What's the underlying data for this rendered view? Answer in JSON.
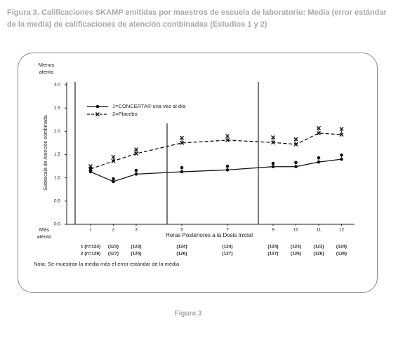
{
  "caption": "Figura 3. Calificaciones SKAMP emitidas por maestros de escuela de laboratorio: Media (error estándar de la media) de calificaciones de atención combinadas (Estudios 1 y 2)",
  "footer": "Figura 3",
  "chart_data": {
    "type": "line",
    "y_label": "Subescala de Atención combinada",
    "x_label": "Horas Posteriores a la Dosis Inicial",
    "top_note": "Menos atento",
    "bottom_note": "Más atento",
    "note": "Nota: Se muestran la media más el error estándar de la media",
    "x": [
      1,
      2,
      3,
      5,
      7,
      9,
      10,
      11,
      12
    ],
    "xlim": [
      0,
      13
    ],
    "xticks": [
      1,
      2,
      3,
      5,
      7,
      9,
      10,
      11,
      12
    ],
    "ylim": [
      0,
      3
    ],
    "yticks": [
      {
        "value": 0,
        "label": "0.0"
      },
      0.5,
      {
        "value": 1,
        "label": "1.0"
      },
      1.5,
      {
        "value": 2,
        "label": "2.0"
      },
      2.5,
      {
        "value": 3,
        "label": "3.0"
      }
    ],
    "series": [
      {
        "name": "1=CONCERTA® una vez al día",
        "color": "#111111",
        "style": "solid",
        "marker": "circle",
        "values": [
          1.13,
          0.92,
          1.08,
          1.13,
          1.17,
          1.24,
          1.24,
          1.34,
          1.4
        ],
        "errors": [
          0.07,
          0.06,
          0.08,
          0.09,
          0.08,
          0.07,
          0.09,
          0.09,
          0.09
        ]
      },
      {
        "name": "2=Placebo",
        "color": "#111111",
        "style": "dashed",
        "marker": "x",
        "values": [
          1.19,
          1.36,
          1.52,
          1.75,
          1.81,
          1.76,
          1.72,
          1.96,
          1.93
        ],
        "errors": [
          0.06,
          0.09,
          0.09,
          0.11,
          0.09,
          0.11,
          0.11,
          0.11,
          0.12
        ]
      }
    ],
    "sample_size_rows": [
      [
        "1 (n=124)",
        "(123)",
        "(123)",
        "(124)",
        "(124)",
        "(124)",
        "(123)",
        "(123)",
        "(124)"
      ],
      [
        "2 (n=128)",
        "(127)",
        "(125)",
        "(126)",
        "(127)",
        "(127)",
        "(126)",
        "(126)",
        "(126)"
      ]
    ]
  }
}
